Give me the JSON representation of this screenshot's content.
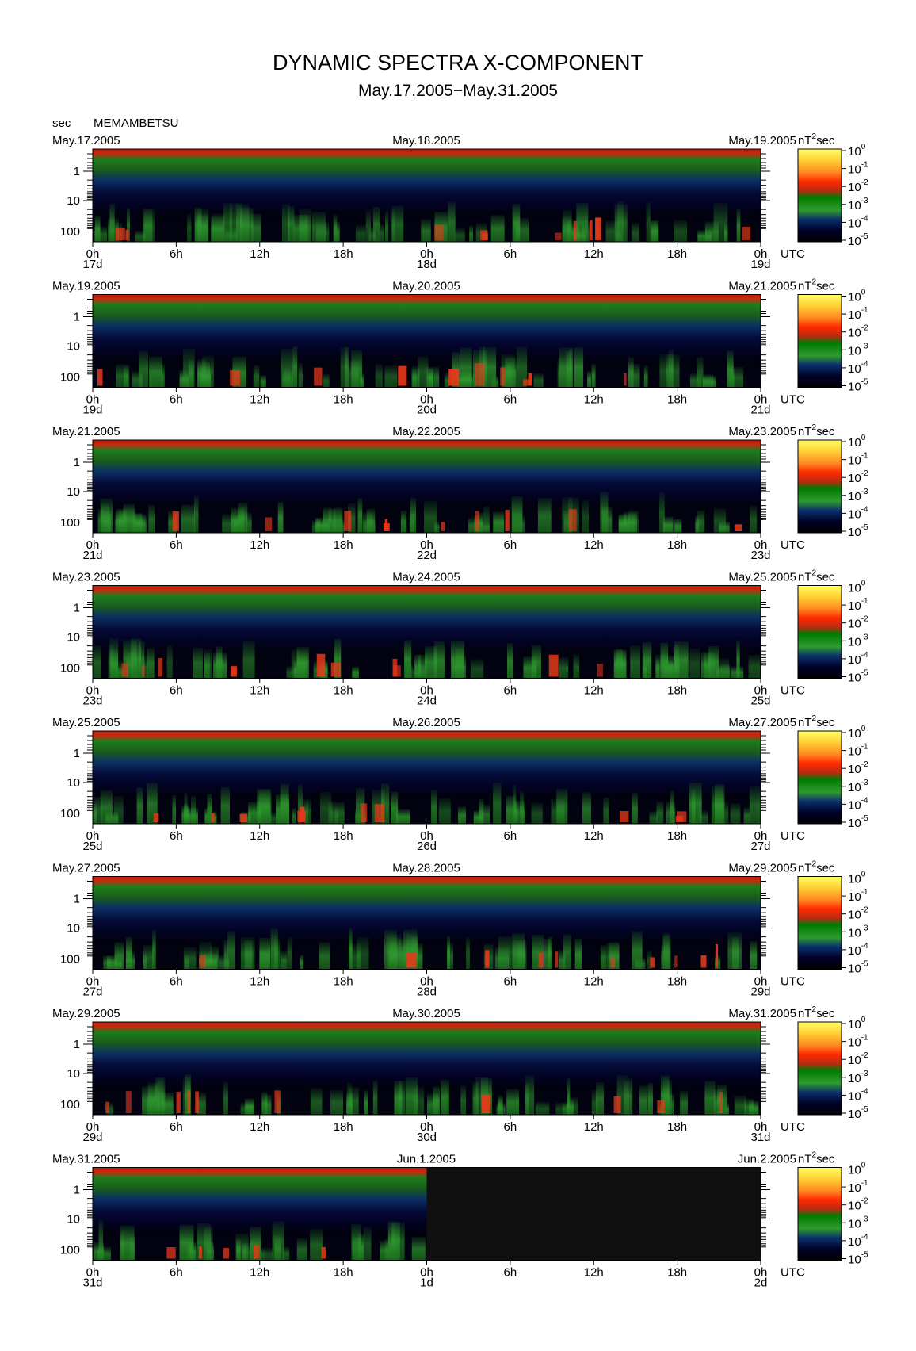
{
  "chart_data": {
    "type": "heatmap",
    "title": "DYNAMIC SPECTRA X-COMPONENT",
    "subtitle": "May.17.2005−May.31.2005",
    "y_unit": "sec",
    "station": "MEMAMBETSU",
    "y_ticks": [
      "1",
      "10",
      "100"
    ],
    "x_ticks": [
      "0h",
      "6h",
      "12h",
      "18h",
      "0h",
      "6h",
      "12h",
      "18h",
      "0h"
    ],
    "x_unit": "UTC",
    "colorbar_unit": "nT",
    "colorbar_unit_sup": "2",
    "colorbar_unit_suffix": "sec",
    "colorbar_ticks": [
      {
        "base": "10",
        "exp": "0"
      },
      {
        "base": "10",
        "exp": "-1"
      },
      {
        "base": "10",
        "exp": "-2"
      },
      {
        "base": "10",
        "exp": "-3"
      },
      {
        "base": "10",
        "exp": "-4"
      },
      {
        "base": "10",
        "exp": "-5"
      }
    ],
    "colormap": [
      "#ffff66",
      "#ffcc33",
      "#ff7722",
      "#ff2200",
      "#cc2a10",
      "#007700",
      "#33aa33",
      "#0a2a6a",
      "#000022",
      "#000000"
    ],
    "panels": [
      {
        "start_date": "May.17.2005",
        "mid_date": "May.18.2005",
        "end_date": "May.19.2005",
        "days": [
          "17d",
          "18d",
          "19d"
        ]
      },
      {
        "start_date": "May.19.2005",
        "mid_date": "May.20.2005",
        "end_date": "May.21.2005",
        "days": [
          "19d",
          "20d",
          "21d"
        ]
      },
      {
        "start_date": "May.21.2005",
        "mid_date": "May.22.2005",
        "end_date": "May.23.2005",
        "days": [
          "21d",
          "22d",
          "23d"
        ]
      },
      {
        "start_date": "May.23.2005",
        "mid_date": "May.24.2005",
        "end_date": "May.25.2005",
        "days": [
          "23d",
          "24d",
          "25d"
        ]
      },
      {
        "start_date": "May.25.2005",
        "mid_date": "May.26.2005",
        "end_date": "May.27.2005",
        "days": [
          "25d",
          "26d",
          "27d"
        ]
      },
      {
        "start_date": "May.27.2005",
        "mid_date": "May.28.2005",
        "end_date": "May.29.2005",
        "days": [
          "27d",
          "28d",
          "29d"
        ]
      },
      {
        "start_date": "May.29.2005",
        "mid_date": "May.30.2005",
        "end_date": "May.31.2005",
        "days": [
          "29d",
          "30d",
          "31d"
        ]
      },
      {
        "start_date": "May.31.2005",
        "mid_date": "Jun.1.2005",
        "end_date": "Jun.2.2005",
        "days": [
          "31d",
          "1d",
          "2d"
        ],
        "data_end_fraction": 0.5
      }
    ]
  }
}
